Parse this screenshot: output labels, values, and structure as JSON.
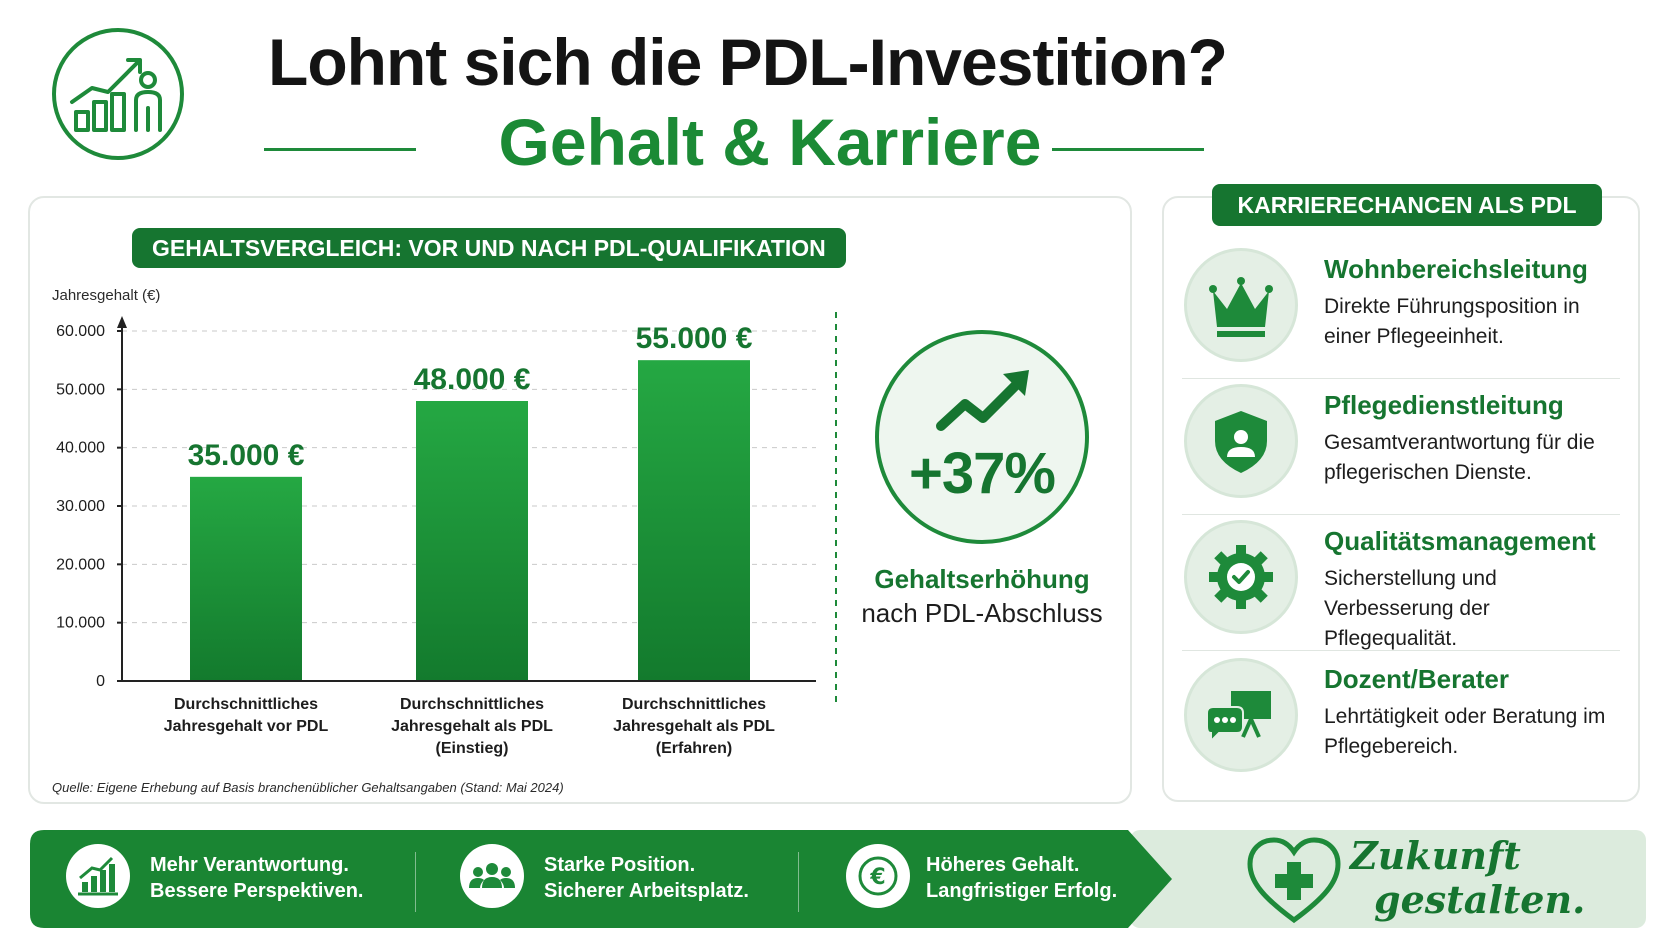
{
  "header": {
    "logo_icon": "growth-person-icon",
    "title": "Lohnt sich die PDL-Investition?",
    "subtitle": "Gehalt & Karriere"
  },
  "salary_panel": {
    "title": "GEHALTSVERGLEICH: VOR UND NACH PDL-QUALIFIKATION",
    "source": "Quelle: Eigene Erhebung auf Basis branchenüblicher Gehaltsangaben (Stand: Mai 2024)"
  },
  "chart_data": {
    "type": "bar",
    "ylabel": "Jahresgehalt (€)",
    "ylim": [
      0,
      60000
    ],
    "yticks": [
      0,
      10000,
      20000,
      30000,
      40000,
      50000,
      60000
    ],
    "ytick_labels": [
      "0",
      "10.000",
      "20.000",
      "30.000",
      "40.000",
      "50.000",
      "60.000"
    ],
    "grid": true,
    "categories": [
      [
        "Durchschnittliches",
        "Jahresgehalt vor PDL"
      ],
      [
        "Durchschnittliches",
        "Jahresgehalt als PDL",
        "(Einstieg)"
      ],
      [
        "Durchschnittliches",
        "Jahresgehalt als PDL",
        "(Erfahren)"
      ]
    ],
    "values": [
      35000,
      48000,
      55000
    ],
    "value_labels": [
      "35.000 €",
      "48.000 €",
      "55.000 €"
    ],
    "bar_color": "#1f9a3c"
  },
  "highlight": {
    "icon": "trend-up-arrow-icon",
    "value": "+37%",
    "label_bold": "Gehaltserhöhung",
    "label": "nach PDL-Abschluss"
  },
  "careers": {
    "title": "KARRIERECHANCEN ALS PDL",
    "items": [
      {
        "icon": "crown-icon",
        "title": "Wohnbereichsleitung",
        "desc": "Direkte Führungsposition in einer Pflegeeinheit."
      },
      {
        "icon": "shield-person-icon",
        "title": "Pflegedienstleitung",
        "desc": "Gesamtverantwortung für die pflegerischen Dienste."
      },
      {
        "icon": "gear-check-icon",
        "title": "Qualitätsmanagement",
        "desc": "Sicherstellung und Verbesserung der Pflegequalität."
      },
      {
        "icon": "presentation-board-icon",
        "title": "Dozent/Berater",
        "desc": "Lehrtätigkeit oder Beratung im Pflegebereich."
      }
    ]
  },
  "footer": {
    "items": [
      {
        "icon": "bar-chart-growth-icon",
        "line1": "Mehr Verantwortung.",
        "line2": "Bessere Perspektiven."
      },
      {
        "icon": "team-icon",
        "line1": "Starke Position.",
        "line2": "Sicherer Arbeitsplatz."
      },
      {
        "icon": "euro-coin-icon",
        "line1": "Höheres Gehalt.",
        "line2": "Langfristiger Erfolg."
      }
    ],
    "slogan_icon": "heart-cross-icon",
    "slogan_line1": "Zukunft",
    "slogan_line2": "gestalten."
  },
  "colors": {
    "brand_green": "#167530",
    "bar_green": "#1f9a3c",
    "light_green": "#e4efe5"
  }
}
